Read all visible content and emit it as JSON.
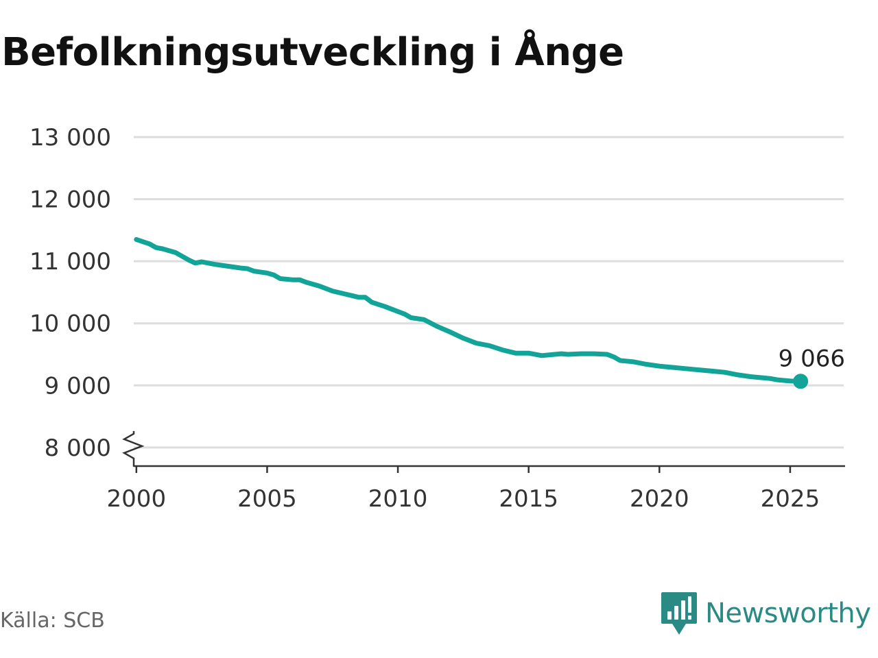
{
  "chart_data": {
    "type": "line",
    "title": "Befolkningsutveckling i Ånge",
    "xlabel": "",
    "ylabel": "",
    "xlim": [
      1999.9,
      2027.1
    ],
    "ylim": [
      7700,
      13000
    ],
    "y_ticks": [
      {
        "value": 8000,
        "label": "8 000"
      },
      {
        "value": 9000,
        "label": "9 000"
      },
      {
        "value": 10000,
        "label": "10 000"
      },
      {
        "value": 11000,
        "label": "11 000"
      },
      {
        "value": 12000,
        "label": "12 000"
      },
      {
        "value": 13000,
        "label": "13 000"
      }
    ],
    "x_ticks": [
      {
        "value": 2000,
        "label": "2000"
      },
      {
        "value": 2005,
        "label": "2005"
      },
      {
        "value": 2010,
        "label": "2010"
      },
      {
        "value": 2015,
        "label": "2015"
      },
      {
        "value": 2020,
        "label": "2020"
      },
      {
        "value": 2025,
        "label": "2025"
      }
    ],
    "grid": true,
    "axis_break": true,
    "line_color": "#12a399",
    "series": [
      {
        "x": [
          2000.0,
          2000.5,
          2000.75,
          2001.0,
          2001.25,
          2001.5,
          2002.0,
          2002.25,
          2002.5,
          2003.0,
          2003.5,
          2004.0,
          2004.25,
          2004.5,
          2005.0,
          2005.25,
          2005.5,
          2006.0,
          2006.25,
          2006.5,
          2007.0,
          2007.5,
          2008.0,
          2008.5,
          2008.75,
          2009.0,
          2009.5,
          2010.0,
          2010.25,
          2010.5,
          2011.0,
          2011.5,
          2012.0,
          2012.5,
          2013.0,
          2013.5,
          2014.0,
          2014.5,
          2015.0,
          2015.5,
          2016.0,
          2016.25,
          2016.5,
          2017.0,
          2017.5,
          2018.0,
          2018.25,
          2018.5,
          2019.0,
          2019.5,
          2020.0,
          2020.25,
          2020.5,
          2021.0,
          2021.5,
          2022.0,
          2022.5,
          2023.0,
          2023.5,
          2024.0,
          2024.25,
          2024.5,
          2025.0,
          2025.4
        ],
        "y": [
          11350,
          11280,
          11220,
          11200,
          11170,
          11140,
          11020,
          10970,
          10990,
          10950,
          10920,
          10890,
          10880,
          10840,
          10810,
          10780,
          10720,
          10700,
          10700,
          10660,
          10600,
          10520,
          10470,
          10420,
          10420,
          10340,
          10270,
          10190,
          10150,
          10090,
          10060,
          9950,
          9860,
          9760,
          9680,
          9640,
          9570,
          9520,
          9520,
          9480,
          9500,
          9510,
          9500,
          9510,
          9510,
          9500,
          9460,
          9400,
          9380,
          9340,
          9310,
          9300,
          9290,
          9270,
          9250,
          9230,
          9210,
          9170,
          9140,
          9120,
          9110,
          9090,
          9070,
          9066
        ]
      }
    ],
    "end_label": "9 066"
  },
  "source_label": "Källa: SCB",
  "brand": {
    "name": "Newsworthy",
    "color": "#2a8a84"
  }
}
